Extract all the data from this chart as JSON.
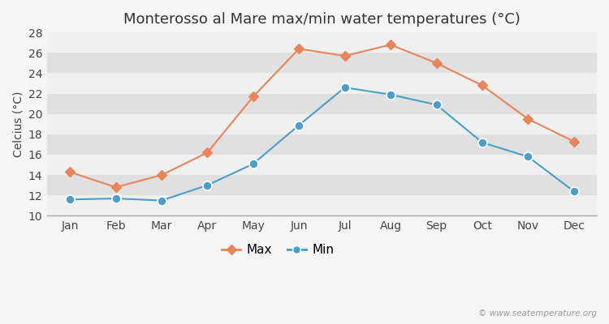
{
  "title": "Monterosso al Mare max/min water temperatures (°C)",
  "xlabel_labels": [
    "Jan",
    "Feb",
    "Mar",
    "Apr",
    "May",
    "Jun",
    "Jul",
    "Aug",
    "Sep",
    "Oct",
    "Nov",
    "Dec"
  ],
  "ylabel": "Celcius (°C)",
  "max_values": [
    14.3,
    12.8,
    14.0,
    16.2,
    21.7,
    26.4,
    25.7,
    26.8,
    25.0,
    22.8,
    19.5,
    17.3
  ],
  "min_values": [
    11.6,
    11.7,
    11.5,
    13.0,
    15.1,
    18.9,
    22.6,
    21.9,
    20.9,
    17.2,
    15.8,
    12.4
  ],
  "max_color": "#e8845a",
  "min_color": "#4a9fc8",
  "ylim": [
    10,
    28
  ],
  "yticks": [
    10,
    12,
    14,
    16,
    18,
    20,
    22,
    24,
    26,
    28
  ],
  "band_colors": [
    "#f0f0f0",
    "#e0e0e0"
  ],
  "background_color": "#f5f5f5",
  "legend_max": "Max",
  "legend_min": "Min",
  "watermark": "© www.seatemperature.org",
  "title_fontsize": 13,
  "axis_label_fontsize": 10,
  "tick_fontsize": 10
}
